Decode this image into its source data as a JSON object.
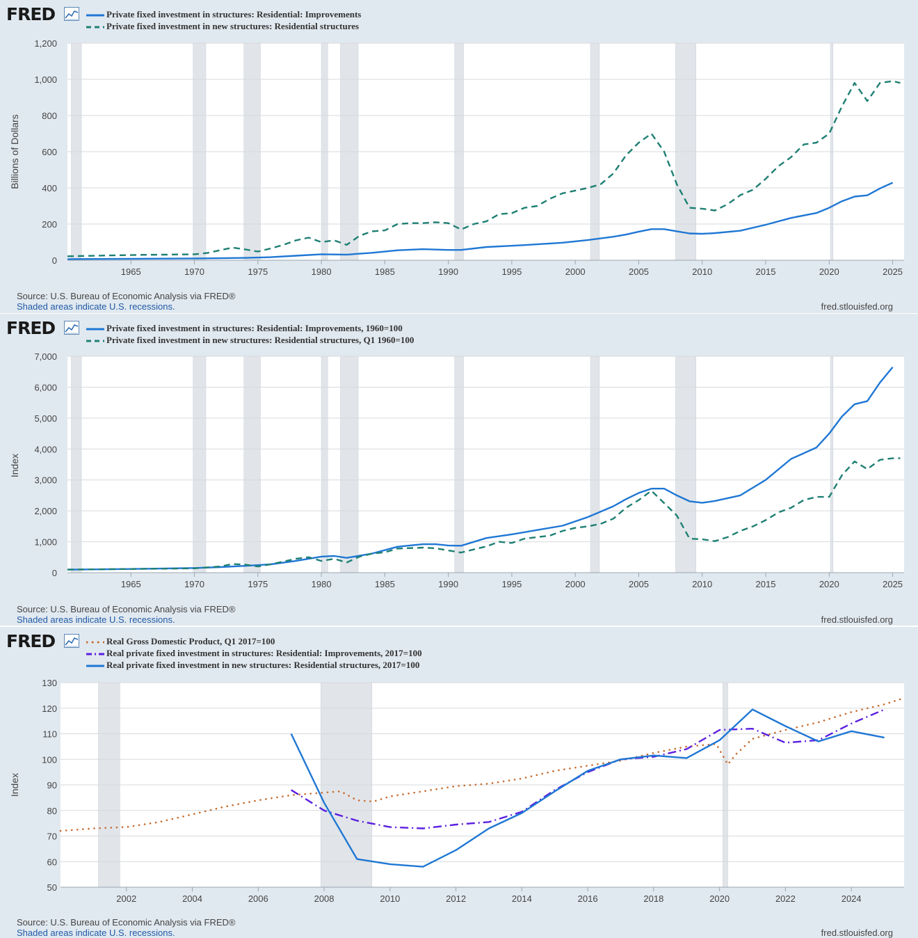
{
  "logo": {
    "text": "FRED",
    "icon": "chart-line-icon"
  },
  "source": "Source: U.S. Bureau of Economic Analysis via FRED®",
  "recession_note": "Shaded areas indicate U.S. recessions.",
  "site": "fred.stlouisfed.org",
  "colors": {
    "panel_bg": "#e1e9f0",
    "plot_bg": "#ffffff",
    "recession": "#e1e5e9",
    "blue": "#1f77d4",
    "teal": "#1e7f73",
    "orange": "#c8692b",
    "purple": "#5b1fe0"
  },
  "chart_data": [
    {
      "type": "line",
      "title": "",
      "xlabel": "",
      "ylabel": "Billions of Dollars",
      "xlim": [
        1960,
        2025.9
      ],
      "ylim": [
        0,
        1200
      ],
      "yticks": [
        0,
        200,
        400,
        600,
        800,
        1000,
        1200
      ],
      "ytick_labels": [
        "0",
        "200",
        "400",
        "600",
        "800",
        "1,000",
        "1,200"
      ],
      "xticks": [
        1965,
        1970,
        1975,
        1980,
        1985,
        1990,
        1995,
        2000,
        2005,
        2010,
        2015,
        2020,
        2025
      ],
      "grid": true,
      "legend": "top-left",
      "recessions": [
        [
          1960.3,
          1961.1
        ],
        [
          1969.9,
          1970.9
        ],
        [
          1973.9,
          1975.2
        ],
        [
          1980.0,
          1980.5
        ],
        [
          1981.5,
          1982.9
        ],
        [
          1990.5,
          1991.2
        ],
        [
          2001.2,
          2001.9
        ],
        [
          2007.9,
          2009.5
        ],
        [
          2020.1,
          2020.3
        ]
      ],
      "series": [
        {
          "name": "Private fixed investment in structures: Residential: Improvements",
          "style": "solid",
          "color": "#1f77d4",
          "x": [
            1960,
            1965,
            1970,
            1972,
            1974,
            1976,
            1978,
            1980,
            1982,
            1984,
            1986,
            1988,
            1990,
            1991,
            1993,
            1995,
            1997,
            1999,
            2001,
            2003,
            2004,
            2005,
            2006,
            2007,
            2008,
            2009,
            2010,
            2011,
            2013,
            2015,
            2017,
            2019,
            2020,
            2021,
            2022,
            2023,
            2024,
            2025
          ],
          "values": [
            6,
            8,
            10,
            11,
            13,
            17,
            25,
            33,
            31,
            41,
            55,
            61,
            57,
            57,
            73,
            80,
            88,
            97,
            112,
            130,
            142,
            158,
            172,
            172,
            160,
            148,
            146,
            150,
            163,
            196,
            234,
            261,
            290,
            326,
            352,
            359,
            397,
            429
          ]
        },
        {
          "name": "Private fixed investment in new structures: Residential structures",
          "style": "dashed",
          "color": "#1e7f73",
          "x": [
            1960,
            1963,
            1966,
            1968,
            1970,
            1971,
            1972,
            1973,
            1974,
            1975,
            1976,
            1977,
            1978,
            1979,
            1980,
            1981,
            1982,
            1983,
            1984,
            1985,
            1986,
            1987,
            1988,
            1989,
            1990,
            1991,
            1992,
            1993,
            1994,
            1995,
            1996,
            1997,
            1998,
            1999,
            2000,
            2001,
            2002,
            2003,
            2004,
            2005,
            2006,
            2007,
            2008,
            2009,
            2010,
            2011,
            2012,
            2013,
            2014,
            2015,
            2016,
            2017,
            2018,
            2019,
            2020,
            2021,
            2022,
            2023,
            2024,
            2025,
            2025.6
          ],
          "values": [
            22,
            26,
            30,
            31,
            33,
            40,
            55,
            70,
            60,
            48,
            65,
            85,
            110,
            125,
            100,
            110,
            85,
            135,
            160,
            165,
            200,
            205,
            205,
            210,
            205,
            170,
            200,
            215,
            255,
            260,
            290,
            300,
            340,
            370,
            385,
            400,
            420,
            480,
            580,
            650,
            700,
            600,
            420,
            290,
            285,
            275,
            310,
            360,
            390,
            450,
            520,
            570,
            640,
            650,
            700,
            850,
            980,
            880,
            980,
            990,
            980
          ]
        }
      ]
    },
    {
      "type": "line",
      "title": "",
      "xlabel": "",
      "ylabel": "Index",
      "xlim": [
        1960,
        2025.9
      ],
      "ylim": [
        0,
        7000
      ],
      "yticks": [
        0,
        1000,
        2000,
        3000,
        4000,
        5000,
        6000,
        7000
      ],
      "ytick_labels": [
        "0",
        "1,000",
        "2,000",
        "3,000",
        "4,000",
        "5,000",
        "6,000",
        "7,000"
      ],
      "xticks": [
        1965,
        1970,
        1975,
        1980,
        1985,
        1990,
        1995,
        2000,
        2005,
        2010,
        2015,
        2020,
        2025
      ],
      "grid": true,
      "legend": "top-left",
      "recessions": [
        [
          1960.3,
          1961.1
        ],
        [
          1969.9,
          1970.9
        ],
        [
          1973.9,
          1975.2
        ],
        [
          1980.0,
          1980.5
        ],
        [
          1981.5,
          1982.9
        ],
        [
          1990.5,
          1991.2
        ],
        [
          2001.2,
          2001.9
        ],
        [
          2007.9,
          2009.5
        ],
        [
          2020.1,
          2020.3
        ]
      ],
      "series": [
        {
          "name": "Private fixed investment in structures: Residential: Improvements, 1960=100",
          "style": "solid",
          "color": "#1f77d4",
          "x": [
            1960,
            1965,
            1970,
            1972,
            1974,
            1976,
            1978,
            1980,
            1981,
            1982,
            1984,
            1986,
            1988,
            1989,
            1990,
            1991,
            1993,
            1995,
            1997,
            1999,
            2001,
            2003,
            2004,
            2005,
            2006,
            2007,
            2008,
            2009,
            2010,
            2011,
            2013,
            2015,
            2017,
            2019,
            2020,
            2021,
            2022,
            2023,
            2024,
            2025
          ],
          "values": [
            100,
            120,
            150,
            180,
            220,
            270,
            380,
            520,
            540,
            480,
            620,
            840,
            920,
            920,
            880,
            870,
            1120,
            1240,
            1380,
            1520,
            1800,
            2150,
            2380,
            2580,
            2720,
            2720,
            2500,
            2310,
            2260,
            2320,
            2500,
            3000,
            3680,
            4050,
            4500,
            5050,
            5450,
            5550,
            6150,
            6650
          ]
        },
        {
          "name": "Private fixed investment in new structures: Residential structures, Q1 1960=100",
          "style": "dashed",
          "color": "#1e7f73",
          "x": [
            1960,
            1965,
            1970,
            1972,
            1973,
            1974,
            1975,
            1976,
            1978,
            1979,
            1980,
            1981,
            1982,
            1983,
            1984,
            1985,
            1986,
            1988,
            1989,
            1990,
            1991,
            1993,
            1994,
            1995,
            1996,
            1998,
            1999,
            2000,
            2001,
            2002,
            2003,
            2004,
            2005,
            2006,
            2007,
            2008,
            2009,
            2010,
            2011,
            2012,
            2013,
            2014,
            2015,
            2016,
            2017,
            2018,
            2019,
            2020,
            2021,
            2022,
            2023,
            2024,
            2025,
            2025.6
          ],
          "values": [
            100,
            120,
            140,
            200,
            280,
            260,
            200,
            270,
            450,
            500,
            380,
            450,
            330,
            520,
            620,
            660,
            780,
            810,
            790,
            720,
            650,
            850,
            1000,
            960,
            1100,
            1200,
            1350,
            1450,
            1500,
            1580,
            1750,
            2100,
            2350,
            2650,
            2250,
            1850,
            1100,
            1080,
            1020,
            1150,
            1350,
            1500,
            1700,
            1950,
            2100,
            2350,
            2450,
            2450,
            3150,
            3600,
            3350,
            3650,
            3700,
            3700
          ]
        }
      ]
    },
    {
      "type": "line",
      "title": "",
      "xlabel": "",
      "ylabel": "Index",
      "xlim": [
        2000,
        2025.6
      ],
      "ylim": [
        50,
        130
      ],
      "yticks": [
        50,
        60,
        70,
        80,
        90,
        100,
        110,
        120,
        130
      ],
      "ytick_labels": [
        "50",
        "60",
        "70",
        "80",
        "90",
        "100",
        "110",
        "120",
        "130"
      ],
      "xticks": [
        2002,
        2004,
        2006,
        2008,
        2010,
        2012,
        2014,
        2016,
        2018,
        2020,
        2022,
        2024
      ],
      "grid": true,
      "legend": "top-left",
      "recessions": [
        [
          2001.15,
          2001.8
        ],
        [
          2007.9,
          2009.45
        ],
        [
          2020.1,
          2020.25
        ]
      ],
      "series": [
        {
          "name": "Real Gross Domestic Product, Q1 2017=100",
          "style": "dotted",
          "color": "#c8692b",
          "x": [
            2000,
            2001,
            2002,
            2003,
            2004,
            2005,
            2006,
            2007,
            2008,
            2008.5,
            2009,
            2009.5,
            2010,
            2011,
            2012,
            2013,
            2014,
            2015,
            2016,
            2017,
            2018,
            2019,
            2019.9,
            2020.25,
            2020.5,
            2021,
            2022,
            2023,
            2024,
            2025,
            2025.6
          ],
          "values": [
            72,
            73,
            73.5,
            75.5,
            78.5,
            81.5,
            84,
            86,
            87,
            87.5,
            84,
            83.5,
            85.5,
            87.5,
            89.5,
            90.5,
            92.5,
            95.5,
            97.5,
            99.5,
            102.5,
            105,
            106,
            98,
            102,
            108,
            111.5,
            114.5,
            118.5,
            121.5,
            124
          ]
        },
        {
          "name": "Real private fixed investment in structures: Residential: Improvements, 2017=100",
          "style": "dashdot",
          "color": "#5b1fe0",
          "x": [
            2007,
            2008,
            2009,
            2010,
            2011,
            2012,
            2013,
            2014,
            2015,
            2016,
            2017,
            2018,
            2019,
            2020,
            2021,
            2022,
            2023,
            2024,
            2025
          ],
          "values": [
            88,
            80,
            76,
            73.5,
            73,
            74.5,
            75.5,
            79.5,
            88,
            95,
            100,
            101,
            104,
            111.5,
            112,
            106.5,
            107.5,
            114,
            119.5
          ]
        },
        {
          "name": "Real private fixed investment in new structures: Residential structures, 2017=100",
          "style": "solid",
          "color": "#1f77d4",
          "x": [
            2007,
            2008,
            2009,
            2010,
            2011,
            2012,
            2013,
            2014,
            2015,
            2016,
            2017,
            2018,
            2019,
            2020,
            2021,
            2022,
            2023,
            2024,
            2025
          ],
          "values": [
            110,
            83,
            61,
            59,
            58,
            64.5,
            73,
            79,
            87.5,
            95.5,
            100,
            101.5,
            100.5,
            107.5,
            119.5,
            113,
            107,
            111,
            108.5
          ]
        }
      ]
    }
  ]
}
